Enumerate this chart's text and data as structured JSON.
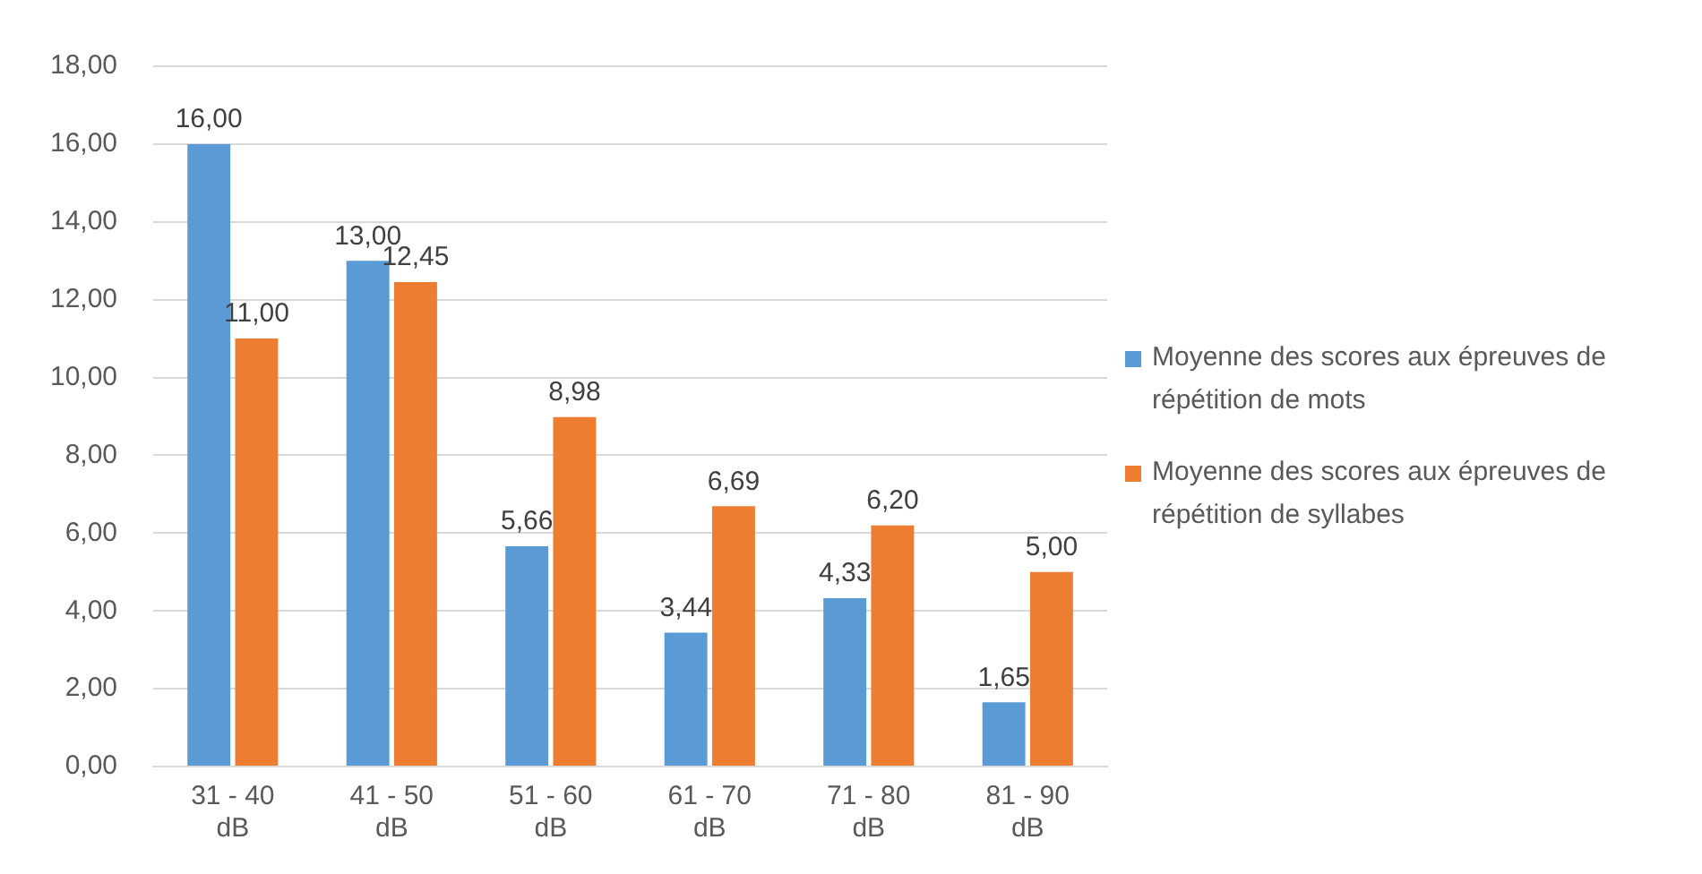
{
  "chart_data": {
    "type": "bar",
    "categories": [
      "31 - 40 dB",
      "41 - 50 dB",
      "51 - 60 dB",
      "61 - 70 dB",
      "71 - 80 dB",
      "81 - 90 dB"
    ],
    "series": [
      {
        "name": "Moyenne des scores aux épreuves de répétition de mots",
        "color": "#5b9bd5",
        "values": [
          16,
          13,
          5.66,
          3.44,
          4.33,
          1.65
        ],
        "value_labels": [
          "16,00",
          "13,00",
          "5,66",
          "3,44",
          "4,33",
          "1,65"
        ]
      },
      {
        "name": "Moyenne des scores aux épreuves de répétition de syllabes",
        "color": "#ed7d31",
        "values": [
          11,
          12.45,
          8.98,
          6.69,
          6.2,
          5
        ],
        "value_labels": [
          "11,00",
          "12,45",
          "8,98",
          "6,69",
          "6,20",
          "5,00"
        ]
      }
    ],
    "ylim": [
      0,
      18
    ],
    "yticks": [
      {
        "value": 0,
        "label": "0,00"
      },
      {
        "value": 2,
        "label": "2,00"
      },
      {
        "value": 4,
        "label": "4,00"
      },
      {
        "value": 6,
        "label": "6,00"
      },
      {
        "value": 8,
        "label": "8,00"
      },
      {
        "value": 10,
        "label": "10,00"
      },
      {
        "value": 12,
        "label": "12,00"
      },
      {
        "value": 14,
        "label": "14,00"
      },
      {
        "value": 16,
        "label": "16,00"
      },
      {
        "value": 18,
        "label": "18,00"
      }
    ],
    "grid": "y",
    "legend": "right"
  }
}
